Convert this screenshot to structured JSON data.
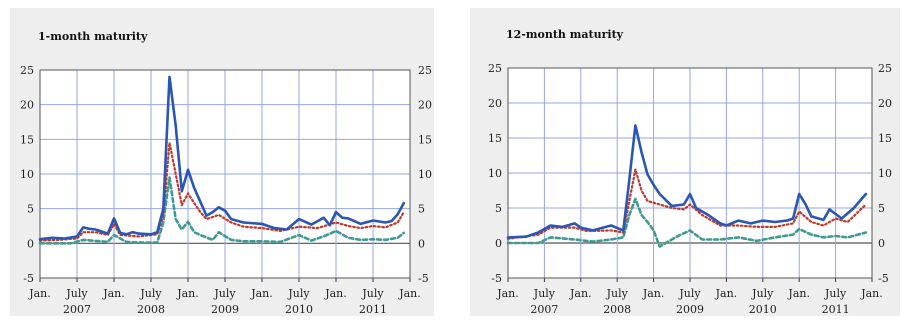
{
  "chart_data": [
    {
      "type": "line",
      "title": "1-month maturity",
      "xlabel": "",
      "ylabel": "",
      "ylim": [
        -5,
        25
      ],
      "yticks": [
        -5,
        0,
        5,
        10,
        15,
        20,
        25
      ],
      "xlim": [
        "2007-01",
        "2011-12"
      ],
      "xticks": [
        {
          "month": "Jan.",
          "year": "",
          "date": "2007-01"
        },
        {
          "month": "July",
          "year": "2007",
          "date": "2007-07"
        },
        {
          "month": "Jan.",
          "year": "",
          "date": "2008-01"
        },
        {
          "month": "July",
          "year": "2008",
          "date": "2008-07"
        },
        {
          "month": "Jan.",
          "year": "",
          "date": "2009-01"
        },
        {
          "month": "July",
          "year": "2009",
          "date": "2009-07"
        },
        {
          "month": "Jan.",
          "year": "",
          "date": "2010-01"
        },
        {
          "month": "July",
          "year": "2010",
          "date": "2010-07"
        },
        {
          "month": "Jan.",
          "year": "",
          "date": "2011-01"
        },
        {
          "month": "July",
          "year": "2011",
          "date": "2011-07"
        },
        {
          "month": "Jan.",
          "year": "",
          "date": "2012-01"
        }
      ],
      "grid": true,
      "series": [
        {
          "color": "#2a56b4",
          "style": "solid",
          "x": [
            "2007-01",
            "2007-03",
            "2007-05",
            "2007-07",
            "2007-08",
            "2007-09",
            "2007-10",
            "2007-12",
            "2008-01",
            "2008-02",
            "2008-03",
            "2008-04",
            "2008-05",
            "2008-07",
            "2008-08",
            "2008-09",
            "2008-10",
            "2008-11",
            "2008-12",
            "2009-01",
            "2009-02",
            "2009-03",
            "2009-04",
            "2009-05",
            "2009-06",
            "2009-07",
            "2009-08",
            "2009-10",
            "2010-01",
            "2010-03",
            "2010-05",
            "2010-07",
            "2010-09",
            "2010-11",
            "2010-12",
            "2011-01",
            "2011-02",
            "2011-03",
            "2011-05",
            "2011-07",
            "2011-09",
            "2011-10",
            "2011-11",
            "2011-12"
          ],
          "y": [
            0.6,
            0.8,
            0.7,
            1.0,
            2.3,
            2.1,
            2.0,
            1.4,
            3.6,
            1.5,
            1.3,
            1.6,
            1.4,
            1.3,
            1.6,
            5.0,
            24.0,
            17.0,
            7.5,
            10.6,
            8.0,
            6.0,
            4.0,
            4.5,
            5.2,
            4.7,
            3.5,
            3.0,
            2.8,
            2.2,
            2.0,
            3.5,
            2.7,
            3.7,
            2.6,
            4.5,
            3.7,
            3.6,
            2.8,
            3.3,
            3.0,
            3.2,
            4.2,
            5.8
          ]
        },
        {
          "color": "#c0392b",
          "style": "dotted",
          "x": [
            "2007-01",
            "2007-04",
            "2007-07",
            "2007-08",
            "2007-10",
            "2007-12",
            "2008-01",
            "2008-02",
            "2008-05",
            "2008-08",
            "2008-09",
            "2008-10",
            "2008-11",
            "2008-12",
            "2009-01",
            "2009-02",
            "2009-03",
            "2009-04",
            "2009-06",
            "2009-08",
            "2009-10",
            "2010-01",
            "2010-04",
            "2010-07",
            "2010-10",
            "2011-01",
            "2011-03",
            "2011-05",
            "2011-07",
            "2011-09",
            "2011-11",
            "2011-12"
          ],
          "y": [
            0.4,
            0.5,
            0.7,
            1.6,
            1.6,
            1.2,
            2.8,
            1.2,
            1.0,
            1.3,
            4.0,
            14.5,
            10.0,
            5.5,
            7.2,
            5.8,
            4.5,
            3.5,
            4.1,
            3.0,
            2.4,
            2.2,
            1.8,
            2.4,
            2.2,
            3.0,
            2.5,
            2.2,
            2.5,
            2.3,
            3.0,
            4.5
          ]
        },
        {
          "color": "#3f9a92",
          "style": "dashed",
          "x": [
            "2007-01",
            "2007-06",
            "2007-08",
            "2007-12",
            "2008-01",
            "2008-03",
            "2008-06",
            "2008-08",
            "2008-09",
            "2008-10",
            "2008-11",
            "2008-12",
            "2009-01",
            "2009-02",
            "2009-03",
            "2009-05",
            "2009-06",
            "2009-08",
            "2009-10",
            "2010-01",
            "2010-04",
            "2010-07",
            "2010-09",
            "2010-11",
            "2011-01",
            "2011-03",
            "2011-05",
            "2011-07",
            "2011-09",
            "2011-11",
            "2011-12"
          ],
          "y": [
            0.0,
            0.0,
            0.5,
            0.2,
            1.2,
            0.2,
            0.1,
            0.1,
            3.0,
            9.5,
            3.5,
            2.0,
            3.1,
            1.6,
            1.2,
            0.5,
            1.6,
            0.5,
            0.3,
            0.3,
            0.2,
            1.2,
            0.4,
            1.0,
            1.8,
            0.8,
            0.5,
            0.6,
            0.5,
            0.8,
            1.5
          ]
        }
      ]
    },
    {
      "type": "line",
      "title": "12-month maturity",
      "xlabel": "",
      "ylabel": "",
      "ylim": [
        -5,
        25
      ],
      "yticks": [
        -5,
        0,
        5,
        10,
        15,
        20,
        25
      ],
      "xlim": [
        "2007-01",
        "2011-12"
      ],
      "xticks": [
        {
          "month": "Jan.",
          "year": "",
          "date": "2007-01"
        },
        {
          "month": "July",
          "year": "2007",
          "date": "2007-07"
        },
        {
          "month": "Jan.",
          "year": "",
          "date": "2008-01"
        },
        {
          "month": "July",
          "year": "2008",
          "date": "2008-07"
        },
        {
          "month": "Jan.",
          "year": "",
          "date": "2009-01"
        },
        {
          "month": "July",
          "year": "2009",
          "date": "2009-07"
        },
        {
          "month": "Jan.",
          "year": "",
          "date": "2010-01"
        },
        {
          "month": "July",
          "year": "2010",
          "date": "2010-07"
        },
        {
          "month": "Jan.",
          "year": "",
          "date": "2011-01"
        },
        {
          "month": "July",
          "year": "2011",
          "date": "2011-07"
        },
        {
          "month": "Jan.",
          "year": "",
          "date": "2012-01"
        }
      ],
      "grid": true,
      "series": [
        {
          "color": "#2a56b4",
          "style": "solid",
          "x": [
            "2007-01",
            "2007-04",
            "2007-06",
            "2007-08",
            "2007-10",
            "2007-12",
            "2008-01",
            "2008-03",
            "2008-06",
            "2008-08",
            "2008-09",
            "2008-10",
            "2008-11",
            "2008-12",
            "2009-01",
            "2009-02",
            "2009-04",
            "2009-06",
            "2009-07",
            "2009-08",
            "2009-10",
            "2009-12",
            "2010-01",
            "2010-03",
            "2010-05",
            "2010-07",
            "2010-09",
            "2010-11",
            "2010-12",
            "2011-01",
            "2011-02",
            "2011-03",
            "2011-05",
            "2011-06",
            "2011-08",
            "2011-10",
            "2011-12"
          ],
          "y": [
            0.8,
            0.9,
            1.5,
            2.5,
            2.3,
            2.8,
            2.2,
            1.8,
            2.5,
            1.8,
            9.0,
            16.8,
            13.0,
            9.8,
            8.3,
            7.0,
            5.3,
            5.5,
            7.0,
            5.0,
            4.0,
            2.8,
            2.5,
            3.2,
            2.8,
            3.2,
            3.0,
            3.2,
            3.5,
            7.0,
            5.6,
            3.8,
            3.3,
            4.8,
            3.5,
            5.0,
            7.0
          ]
        },
        {
          "color": "#c0392b",
          "style": "dotted",
          "x": [
            "2007-01",
            "2007-06",
            "2007-08",
            "2007-12",
            "2008-02",
            "2008-06",
            "2008-08",
            "2008-09",
            "2008-10",
            "2008-11",
            "2008-12",
            "2009-02",
            "2009-04",
            "2009-06",
            "2009-07",
            "2009-09",
            "2009-12",
            "2010-03",
            "2010-06",
            "2010-09",
            "2010-12",
            "2011-01",
            "2011-03",
            "2011-05",
            "2011-07",
            "2011-09",
            "2011-12"
          ],
          "y": [
            0.6,
            1.2,
            2.2,
            2.2,
            1.7,
            1.8,
            1.5,
            6.0,
            10.5,
            7.5,
            6.0,
            5.5,
            5.0,
            4.8,
            5.5,
            4.0,
            2.5,
            2.5,
            2.3,
            2.3,
            2.8,
            4.5,
            3.0,
            2.5,
            3.5,
            3.0,
            5.5
          ]
        },
        {
          "color": "#3f9a92",
          "style": "dashed",
          "x": [
            "2007-01",
            "2007-06",
            "2007-08",
            "2007-12",
            "2008-03",
            "2008-06",
            "2008-08",
            "2008-09",
            "2008-10",
            "2008-11",
            "2008-12",
            "2009-01",
            "2009-02",
            "2009-03",
            "2009-05",
            "2009-07",
            "2009-09",
            "2009-12",
            "2010-03",
            "2010-06",
            "2010-09",
            "2010-12",
            "2011-01",
            "2011-03",
            "2011-05",
            "2011-07",
            "2011-09",
            "2011-12"
          ],
          "y": [
            0.0,
            0.0,
            0.8,
            0.5,
            0.2,
            0.5,
            0.8,
            4.0,
            6.3,
            4.0,
            3.0,
            1.8,
            -0.5,
            0.0,
            1.0,
            1.8,
            0.5,
            0.5,
            0.8,
            0.3,
            0.8,
            1.2,
            2.0,
            1.2,
            0.8,
            1.0,
            0.8,
            1.5
          ]
        }
      ]
    }
  ]
}
